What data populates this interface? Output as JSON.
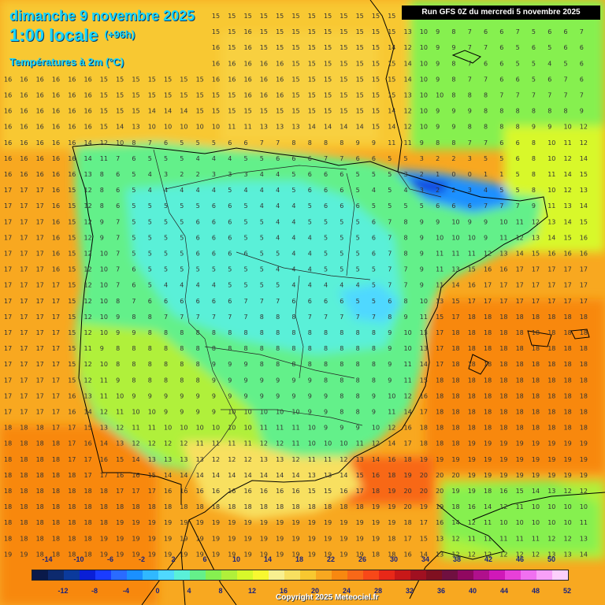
{
  "header": {
    "date": "dimanche 9 novembre 2025",
    "time": "1:00 locale",
    "forecast_offset": "(+96h)",
    "variable": "Températures à 2m (°C)",
    "run_info": "Run GFS 0Z du mercredi 5 novembre 2025"
  },
  "legend": {
    "top_labels": [
      "-14",
      "-10",
      "-6",
      "-2",
      "2",
      "6",
      "10",
      "14",
      "18",
      "22",
      "26",
      "30",
      "34",
      "38",
      "42",
      "46",
      "50"
    ],
    "bottom_labels": [
      "-12",
      "-8",
      "-4",
      "0",
      "4",
      "8",
      "12",
      "16",
      "20",
      "24",
      "28",
      "32",
      "36",
      "40",
      "44",
      "48",
      "52"
    ],
    "colors": [
      "#0a1a4a",
      "#0d2a6e",
      "#0b3a9c",
      "#0a1fd6",
      "#1a3cff",
      "#2a6bff",
      "#1a90ff",
      "#30b8ff",
      "#4fd8ff",
      "#5af0d8",
      "#64f08a",
      "#86f050",
      "#b0f03a",
      "#d8f82a",
      "#f8f830",
      "#f8f090",
      "#f8e060",
      "#f8c830",
      "#f8a820",
      "#f88810",
      "#f86818",
      "#f84818",
      "#e82818",
      "#c81818",
      "#a01020",
      "#801020",
      "#701040",
      "#900860",
      "#b0108c",
      "#d018b8",
      "#e840d8",
      "#f070f0",
      "#f8a0f8",
      "#fcd0fc"
    ],
    "icon": "color-scale-bar"
  },
  "grid_values": {
    "rows": [
      "15 15 15 15 15 15 15 15 15 15 15 15 15 15 15 15 15 15 15 15 15 15 15 15 15 13 10 9 8 7 6 6 5 4 7 7 8",
      "15 15 15 15 15 15 15 15 15 15 15 15 15 15 15 16 15 15 15 15 15 15 15 15 15 13 10 9 8 7 6 6 7 5 6 6 7",
      "15 15 15 15 15 16 15 15 15 15 15 15 15 16 15 16 15 15 15 15 15 15 15 15 14 12 10 9 9 7 7 6 5 6 5 6 6",
      "16 16 16 16 16 16 16 15 15 15 15 15 15 16 16 16 16 16 15 15 15 15 15 15 15 14 10 9 8 7 6 6 5 5 4 5 6",
      "16 16 16 16 16 16 15 15 15 15 15 15 15 16 16 16 16 16 15 15 15 15 15 15 15 14 10 9 8 7 7 6 6 5 6 7 6",
      "16 16 16 16 16 16 15 15 15 15 15 15 15 15 15 16 16 16 15 15 15 15 15 15 15 13 10 10 8 8 8 7 7 7 7 7 7",
      "16 16 16 16 16 16 15 15 15 14 14 14 15 15 15 15 15 15 15 15 15 15 15 15 14 12 10 9 9 9 8 8 8 8 8 8 9",
      "16 16 16 16 16 16 15 14 13 10 10 10 10 10 11 11 13 13 13 14 14 14 14 15 14 12 10 9 9 8 8 8 8 9 9 10 12",
      "16 16 16 16 16 14 12 10 8 7 6 5 5 5 6 6 7 7 8 8 8 8 9 9 11 11 9 8 8 7 7 6 6 8 10 11 12",
      "16 16 16 16 16 14 11 7 6 5 5 5 4 4 4 5 5 6 6 6 7 7 6 6 5 5 3 2 2 3 5 5 6 8 10 12 14",
      "16 16 16 16 16 13 8 6 5 4 3 2 2 3 3 3 4 4 5 6 6 6 5 5 5 3 2 1 0 0 1 1 5 8 11 14 15",
      "17 17 17 16 15 12 8 6 5 4 4 4 4 4 5 4 4 4 5 6 6 6 5 4 5 4 3 2 2 3 4 5 5 8 10 12 13",
      "17 17 17 16 15 12 8 6 5 5 5 5 5 6 6 5 4 4 4 5 6 6 6 5 5 5 5 6 6 6 7 7 7 9 11 13 14",
      "17 17 17 16 15 12 9 7 5 5 5 5 6 6 6 5 5 4 4 5 5 5 5 6 7 8 9 9 10 9 9 10 11 12 13 14 15",
      "17 17 17 16 15 12 9 7 5 5 5 5 6 6 6 5 5 4 4 4 5 5 5 6 7 8 9 10 10 10 9 11 12 13 14 15 16",
      "17 17 17 16 15 12 10 7 5 5 5 5 6 6 6 6 5 5 4 4 5 5 5 6 7 8 9 11 11 11 12 13 14 15 16 16 16",
      "17 17 17 16 15 12 10 7 6 5 5 5 5 5 5 5 5 4 4 4 5 5 5 5 7 7 9 11 13 15 16 16 17 17 17 17 17",
      "17 17 17 17 15 12 10 7 6 5 4 4 4 4 5 5 5 5 4 4 4 4 4 5 7 7 9 11 14 16 17 17 17 17 17 17 17",
      "17 17 17 17 15 12 10 8 7 6 6 6 6 6 6 7 7 7 6 6 6 6 5 5 6 8 10 13 15 17 17 17 17 17 17 17 17",
      "17 17 17 17 15 12 10 9 8 8 7 7 7 7 7 7 8 8 8 7 7 7 7 7 8 9 11 15 17 18 18 18 18 18 18 18 18",
      "17 17 17 17 15 12 10 9 9 8 8 8 8 8 8 8 8 8 8 8 8 8 8 8 9 10 13 17 18 18 18 18 18 18 18 18 18",
      "17 17 17 17 15 11 9 8 8 8 8 8 8 8 8 8 8 8 8 8 8 8 8 8 9 10 13 17 18 18 18 18 18 18 18 18 18",
      "17 17 17 17 15 12 10 8 8 8 8 8 8 9 9 9 8 8 8 8 8 8 8 8 9 11 14 17 18 18 18 18 18 18 18 18 18",
      "17 17 17 17 15 12 11 9 8 8 8 8 8 9 9 9 9 9 9 9 8 8 8 8 9 11 15 18 18 18 18 18 18 18 18 18 18",
      "17 17 17 17 16 13 11 10 9 9 9 9 9 9 9 9 9 9 9 9 9 8 8 9 10 12 16 18 18 18 18 18 18 18 18 18 18",
      "17 17 17 17 16 14 12 11 10 10 9 9 9 9 10 10 10 10 10 9 9 8 8 9 11 14 17 18 18 18 18 18 18 18 18 18 18",
      "18 18 18 17 17 15 13 12 11 11 10 10 10 10 10 10 11 11 11 10 9 9 9 10 12 16 18 18 18 18 18 18 18 18 18 18 18",
      "18 18 18 18 17 16 14 13 12 12 12 12 11 11 11 11 12 12 11 10 10 10 11 12 14 17 18 18 18 19 19 19 19 19 19 19 19",
      "18 18 18 18 17 17 16 15 14 13 13 13 13 12 12 12 13 13 12 11 11 12 13 14 16 18 19 19 19 19 19 19 19 19 19 19 19",
      "18 18 18 18 18 17 17 16 16 15 14 14 14 14 14 14 14 14 14 13 13 14 15 16 18 19 20 20 20 19 19 19 19 19 19 19 19",
      "18 18 18 18 18 18 18 17 17 17 16 16 16 16 16 16 16 16 16 15 15 16 17 18 19 20 20 20 19 19 18 16 15 14 13 12 12",
      "18 18 18 18 18 18 18 18 18 18 18 18 18 18 18 18 18 18 18 18 18 18 18 19 19 20 19 19 18 16 14 12 11 10 10 10 10",
      "18 18 18 18 18 18 18 19 19 19 19 19 19 19 19 19 19 19 19 19 19 19 19 19 19 18 17 16 14 12 11 10 10 10 10 10 11",
      "18 18 18 18 18 18 19 19 19 19 19 19 19 19 19 19 19 19 19 19 19 19 19 19 18 17 15 13 12 11 11 11 11 11 12 12 13",
      "19 19 18 18 18 18 19 19 19 19 19 19 19 19 19 19 19 19 19 19 19 19 19 18 18 16 14 13 12 12 12 12 12 12 13 13 14",
      "19 19 18 18 18 18 19 19 19 19 19 19 19 19 19 19 19 19 19 19 19 19 19 18 17 16 15 14 13 13 13 13 13 13 14 14 15",
      "19 19 18 18 18 18 18 18 18 18 19 19 19 19 19 19 19 19 19 19 19 19 18 18 17 16 15 15 14 14 14 14 14 14 15 15 16"
    ]
  },
  "copyright": "Copyright 2025 Meteociel.fr"
}
